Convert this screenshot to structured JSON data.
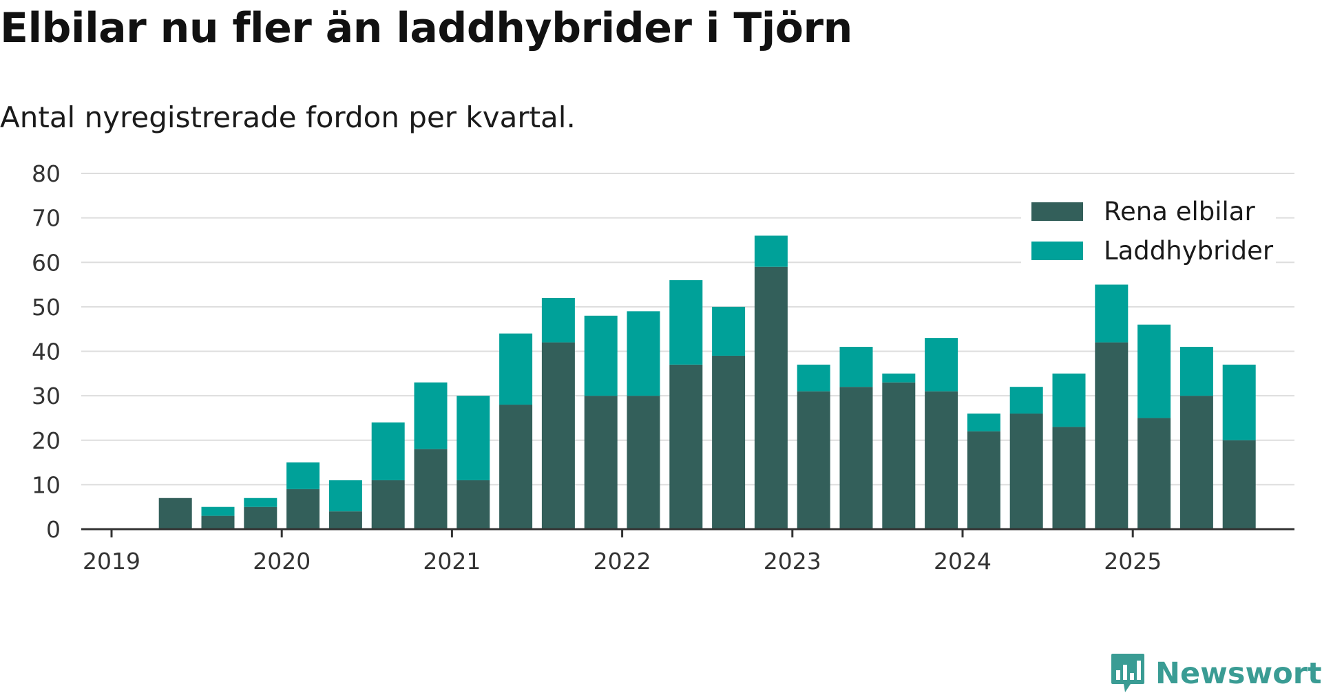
{
  "title": "Elbilar nu fler än laddhybrider i Tjörn",
  "subtitle": "Antal nyregistrerade fordon per kvartal.",
  "colors": {
    "elbilar": "#335f5a",
    "laddhybrider": "#00a199",
    "grid": "#dddddd",
    "axis": "#333333",
    "brand": "#3a9c94"
  },
  "brand": {
    "name": "Newsworthy",
    "icon": "bar-chart-speech-icon"
  },
  "chart_data": {
    "type": "bar",
    "stacked": true,
    "title": "Elbilar nu fler än laddhybrider i Tjörn",
    "subtitle": "Antal nyregistrerade fordon per kvartal.",
    "xlabel": "",
    "ylabel": "",
    "ylim": [
      0,
      80
    ],
    "yticks": [
      "0",
      "10",
      "20",
      "30",
      "40",
      "50",
      "60",
      "70",
      "80"
    ],
    "xticks": [
      "2019",
      "2020",
      "2021",
      "2022",
      "2023",
      "2024",
      "2025"
    ],
    "categories": [
      "2019 Q1",
      "2019 Q2",
      "2019 Q3",
      "2019 Q4",
      "2020 Q1",
      "2020 Q2",
      "2020 Q3",
      "2020 Q4",
      "2021 Q1",
      "2021 Q2",
      "2021 Q3",
      "2021 Q4",
      "2022 Q1",
      "2022 Q2",
      "2022 Q3",
      "2022 Q4",
      "2023 Q1",
      "2023 Q2",
      "2023 Q3",
      "2023 Q4",
      "2024 Q1",
      "2024 Q2",
      "2024 Q3",
      "2024 Q4",
      "2025 Q1",
      "2025 Q2",
      "2025 Q3"
    ],
    "series": [
      {
        "name": "Rena elbilar",
        "values": [
          0,
          7,
          3,
          5,
          9,
          4,
          11,
          18,
          11,
          28,
          42,
          30,
          30,
          37,
          39,
          59,
          31,
          32,
          33,
          31,
          22,
          26,
          23,
          42,
          25,
          30,
          20
        ]
      },
      {
        "name": "Laddhybrider",
        "values": [
          0,
          0,
          2,
          2,
          6,
          7,
          13,
          15,
          19,
          16,
          10,
          18,
          19,
          19,
          11,
          7,
          6,
          9,
          2,
          12,
          4,
          6,
          12,
          13,
          21,
          11,
          17
        ]
      }
    ],
    "grid": true,
    "legend": "top-right"
  }
}
